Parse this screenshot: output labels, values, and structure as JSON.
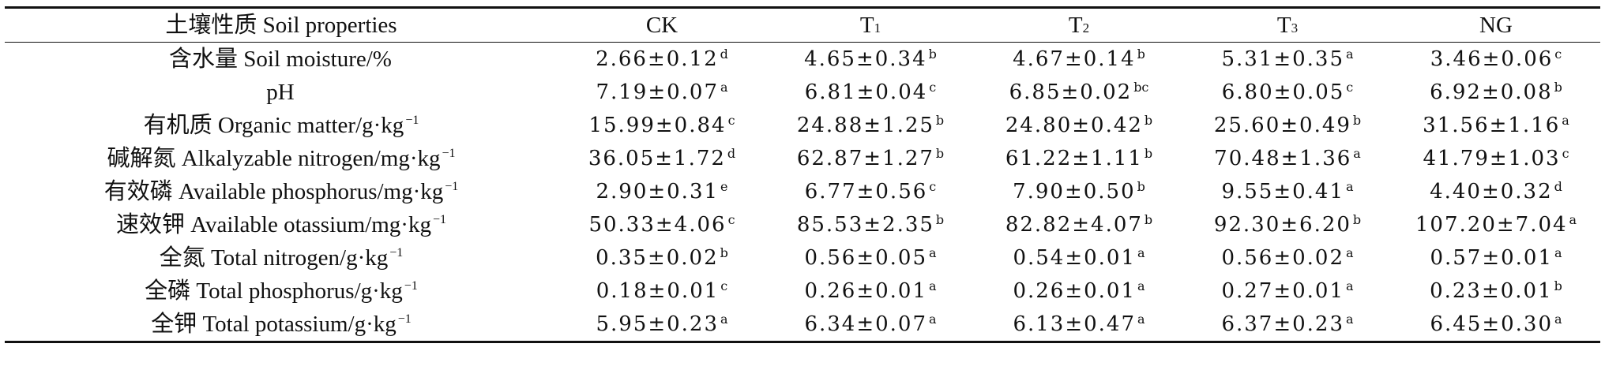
{
  "header": {
    "property": "土壤性质 Soil properties",
    "ck": "CK",
    "t1_base": "T",
    "t1_sub": "1",
    "t2_base": "T",
    "t2_sub": "2",
    "t3_base": "T",
    "t3_sub": "3",
    "ng": "NG"
  },
  "rows": [
    {
      "label": "含水量 Soil moisture/%",
      "label_sup": "",
      "ck": "2.66±0.12",
      "ck_sup": "d",
      "t1": "4.65±0.34",
      "t1_sup": "b",
      "t2": "4.67±0.14",
      "t2_sup": "b",
      "t3": "5.31±0.35",
      "t3_sup": "a",
      "ng": "3.46±0.06",
      "ng_sup": "c"
    },
    {
      "label": "pH",
      "label_sup": "",
      "ck": "7.19±0.07",
      "ck_sup": "a",
      "t1": "6.81±0.04",
      "t1_sup": "c",
      "t2": "6.85±0.02",
      "t2_sup": "bc",
      "t3": "6.80±0.05",
      "t3_sup": "c",
      "ng": "6.92±0.08",
      "ng_sup": "b"
    },
    {
      "label": "有机质 Organic matter/g·kg",
      "label_sup": "−1",
      "ck": "15.99±0.84",
      "ck_sup": "c",
      "t1": "24.88±1.25",
      "t1_sup": "b",
      "t2": "24.80±0.42",
      "t2_sup": "b",
      "t3": "25.60±0.49",
      "t3_sup": "b",
      "ng": "31.56±1.16",
      "ng_sup": "a"
    },
    {
      "label": "碱解氮 Alkalyzable nitrogen/mg·kg",
      "label_sup": "−1",
      "ck": "36.05±1.72",
      "ck_sup": "d",
      "t1": "62.87±1.27",
      "t1_sup": "b",
      "t2": "61.22±1.11",
      "t2_sup": "b",
      "t3": "70.48±1.36",
      "t3_sup": "a",
      "ng": "41.79±1.03",
      "ng_sup": "c"
    },
    {
      "label": "有效磷 Available phosphorus/mg·kg",
      "label_sup": "−1",
      "ck": "2.90±0.31",
      "ck_sup": "e",
      "t1": "6.77±0.56",
      "t1_sup": "c",
      "t2": "7.90±0.50",
      "t2_sup": "b",
      "t3": "9.55±0.41",
      "t3_sup": "a",
      "ng": "4.40±0.32",
      "ng_sup": "d"
    },
    {
      "label": "速效钾 Available otassium/mg·kg",
      "label_sup": "−1",
      "ck": "50.33±4.06",
      "ck_sup": "c",
      "t1": "85.53±2.35",
      "t1_sup": "b",
      "t2": "82.82±4.07",
      "t2_sup": "b",
      "t3": "92.30±6.20",
      "t3_sup": "b",
      "ng": "107.20±7.04",
      "ng_sup": "a"
    },
    {
      "label": "全氮 Total nitrogen/g·kg",
      "label_sup": "−1",
      "ck": "0.35±0.02",
      "ck_sup": "b",
      "t1": "0.56±0.05",
      "t1_sup": "a",
      "t2": "0.54±0.01",
      "t2_sup": "a",
      "t3": "0.56±0.02",
      "t3_sup": "a",
      "ng": "0.57±0.01",
      "ng_sup": "a"
    },
    {
      "label": "全磷 Total phosphorus/g·kg",
      "label_sup": "−1",
      "ck": "0.18±0.01",
      "ck_sup": "c",
      "t1": "0.26±0.01",
      "t1_sup": "a",
      "t2": "0.26±0.01",
      "t2_sup": "a",
      "t3": "0.27±0.01",
      "t3_sup": "a",
      "ng": "0.23±0.01",
      "ng_sup": "b"
    },
    {
      "label": "全钾 Total potassium/g·kg",
      "label_sup": "−1",
      "ck": "5.95±0.23",
      "ck_sup": "a",
      "t1": "6.34±0.07",
      "t1_sup": "a",
      "t2": "6.13±0.47",
      "t2_sup": "a",
      "t3": "6.37±0.23",
      "t3_sup": "a",
      "ng": "6.45±0.30",
      "ng_sup": "a"
    }
  ]
}
